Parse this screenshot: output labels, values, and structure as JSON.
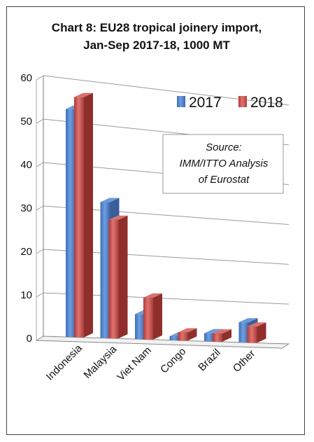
{
  "chart_data": {
    "type": "bar",
    "title_lines": [
      "Chart 8: EU28 tropical joinery import,",
      "Jan-Sep 2017-18, 1000 MT"
    ],
    "categories": [
      "Indonesia",
      "Malaysia",
      "Viet Nam",
      "Congo",
      "Brazil",
      "Other"
    ],
    "series": [
      {
        "name": "2017",
        "values": [
          53,
          32,
          6,
          1,
          2,
          5
        ],
        "color": "#4a7fc9"
      },
      {
        "name": "2018",
        "values": [
          56,
          28,
          10,
          2,
          2,
          4
        ],
        "color": "#c0504d"
      }
    ],
    "ylim": [
      0,
      60
    ],
    "yticks": [
      "0",
      "10",
      "20",
      "30",
      "40",
      "50",
      "60"
    ],
    "grid": true,
    "legend_position": "top-right",
    "annotation": {
      "lines": [
        "Source:",
        "IMM/ITTO Analysis",
        "of Eurostat"
      ]
    }
  }
}
